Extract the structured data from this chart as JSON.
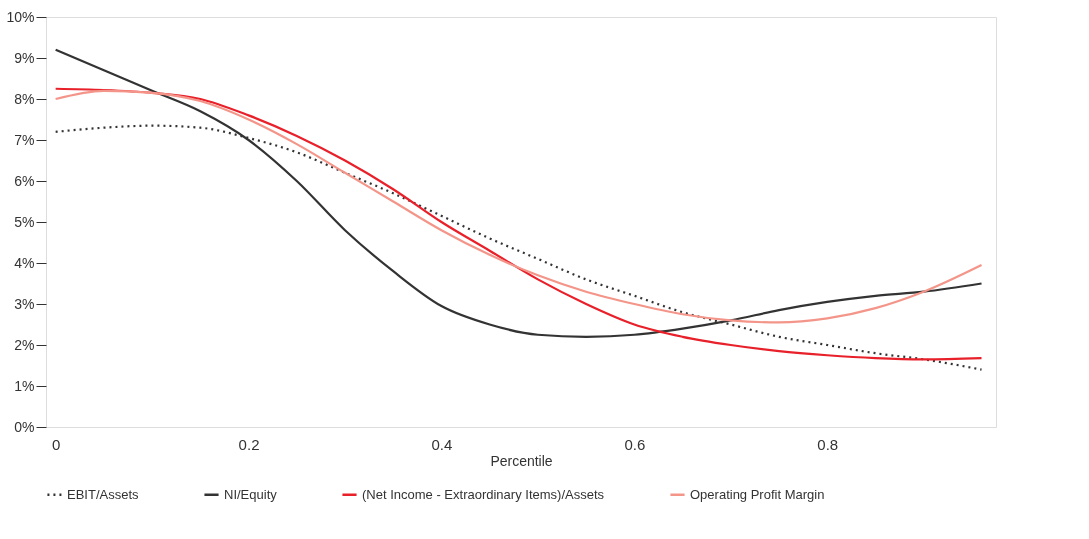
{
  "chart_data": {
    "type": "line",
    "xlabel": "Percentile",
    "x": [
      0,
      0.05,
      0.1,
      0.15,
      0.2,
      0.25,
      0.3,
      0.35,
      0.4,
      0.45,
      0.5,
      0.55,
      0.6,
      0.65,
      0.7,
      0.75,
      0.8,
      0.85,
      0.9,
      0.96
    ],
    "series": [
      {
        "name": "EBIT/Assets",
        "color": "#333333",
        "line_style": "dotted",
        "values": [
          7.2,
          7.3,
          7.35,
          7.3,
          7.05,
          6.7,
          6.2,
          5.7,
          5.15,
          4.6,
          4.1,
          3.6,
          3.2,
          2.8,
          2.5,
          2.2,
          2.0,
          1.8,
          1.65,
          1.4
        ]
      },
      {
        "name": "NI/Equity",
        "color": "#333333",
        "line_style": "solid",
        "values": [
          9.2,
          8.7,
          8.2,
          7.7,
          7.0,
          6.0,
          4.8,
          3.8,
          2.95,
          2.5,
          2.25,
          2.2,
          2.25,
          2.4,
          2.6,
          2.85,
          3.05,
          3.2,
          3.3,
          3.5
        ]
      },
      {
        "name": "(Net Income - Extraordinary Items)/Assets",
        "color": "#e8202a",
        "line_style": "solid",
        "values": [
          8.25,
          8.22,
          8.15,
          8.0,
          7.6,
          7.1,
          6.5,
          5.8,
          5.0,
          4.3,
          3.6,
          3.0,
          2.5,
          2.2,
          2.0,
          1.85,
          1.75,
          1.68,
          1.65,
          1.68
        ]
      },
      {
        "name": "Operating Profit Margin",
        "color": "#f4958a",
        "line_style": "solid",
        "values": [
          8.0,
          8.2,
          8.15,
          7.95,
          7.5,
          6.9,
          6.2,
          5.5,
          4.8,
          4.2,
          3.7,
          3.3,
          3.0,
          2.75,
          2.6,
          2.55,
          2.65,
          2.9,
          3.3,
          3.95
        ]
      }
    ],
    "xlim": [
      -0.01,
      0.975
    ],
    "xticks": [
      0,
      0.2,
      0.4,
      0.6,
      0.8
    ],
    "ylim": [
      0,
      10
    ],
    "yticks": [
      {
        "value": 0,
        "label": "0%"
      },
      {
        "value": 1,
        "label": "1%"
      },
      {
        "value": 2,
        "label": "2%"
      },
      {
        "value": 3,
        "label": "3%"
      },
      {
        "value": 4,
        "label": "4%"
      },
      {
        "value": 5,
        "label": "5%"
      },
      {
        "value": 6,
        "label": "6%"
      },
      {
        "value": 7,
        "label": "7%"
      },
      {
        "value": 8,
        "label": "8%"
      },
      {
        "value": 9,
        "label": "9%"
      },
      {
        "value": 10,
        "label": "10%"
      }
    ],
    "grid": false,
    "legend": "bottom",
    "marker": "none"
  }
}
